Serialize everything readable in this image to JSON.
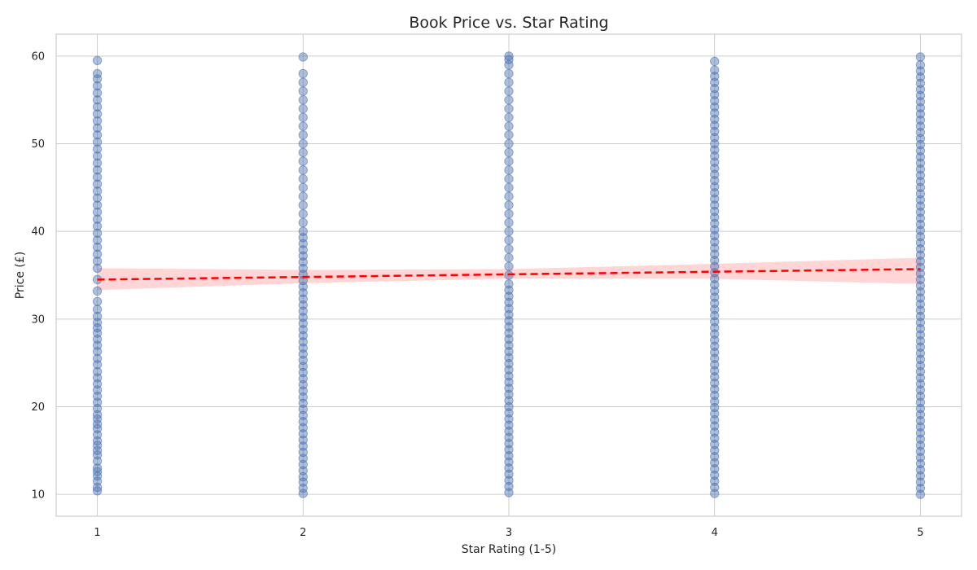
{
  "chart_data": {
    "type": "scatter",
    "title": "Book Price vs. Star Rating",
    "xlabel": "Star Rating (1-5)",
    "ylabel": "Price (£)",
    "xlim": [
      0.8,
      5.2
    ],
    "ylim": [
      7.5,
      62.5
    ],
    "x_ticks": [
      1,
      2,
      3,
      4,
      5
    ],
    "y_ticks": [
      10,
      20,
      30,
      40,
      50,
      60
    ],
    "grid": true,
    "point_color": "#4C72B0",
    "trend_color": "#FF0000",
    "ci_color": "#FFB3B3",
    "series": [
      {
        "x": 1,
        "values": [
          10.4,
          10.8,
          11.5,
          12.1,
          12.6,
          13.0,
          13.8,
          14.5,
          15.0,
          15.6,
          16.1,
          16.8,
          17.5,
          18.0,
          18.6,
          19.1,
          19.8,
          20.5,
          21.2,
          21.9,
          22.6,
          23.3,
          24.0,
          24.8,
          25.5,
          26.3,
          27.0,
          27.7,
          28.4,
          29.0,
          29.6,
          30.3,
          31.1,
          32.0,
          33.2,
          34.5,
          35.8,
          36.6,
          37.4,
          38.2,
          39.0,
          39.8,
          40.6,
          41.4,
          42.2,
          43.0,
          43.8,
          44.6,
          45.4,
          46.2,
          47.0,
          47.8,
          48.6,
          49.4,
          50.2,
          51.0,
          51.8,
          52.6,
          53.4,
          54.2,
          55.0,
          55.8,
          56.6,
          57.4,
          58.0,
          59.5
        ]
      },
      {
        "x": 2,
        "values": [
          10.1,
          10.7,
          11.4,
          12.0,
          12.7,
          13.4,
          14.1,
          14.8,
          15.5,
          16.2,
          16.9,
          17.6,
          18.3,
          19.0,
          19.7,
          20.4,
          21.1,
          21.8,
          22.5,
          23.2,
          23.9,
          24.6,
          25.3,
          26.0,
          26.7,
          27.4,
          28.1,
          28.8,
          29.5,
          30.2,
          30.9,
          31.6,
          32.3,
          33.0,
          33.7,
          34.4,
          35.1,
          35.8,
          36.5,
          37.2,
          37.9,
          38.6,
          39.3,
          40.0,
          41.0,
          42.0,
          43.0,
          44.0,
          45.0,
          46.0,
          47.0,
          48.0,
          49.0,
          50.0,
          51.0,
          52.0,
          53.0,
          54.0,
          55.0,
          56.0,
          57.0,
          58.0,
          59.9
        ]
      },
      {
        "x": 3,
        "values": [
          10.2,
          10.9,
          11.6,
          12.3,
          13.0,
          13.7,
          14.4,
          15.1,
          15.8,
          16.5,
          17.2,
          17.9,
          18.6,
          19.3,
          20.0,
          20.7,
          21.4,
          22.1,
          22.8,
          23.5,
          24.2,
          24.9,
          25.6,
          26.3,
          27.0,
          27.7,
          28.4,
          29.1,
          29.8,
          30.5,
          31.2,
          31.9,
          32.6,
          33.3,
          34.0,
          35.0,
          36.0,
          37.0,
          38.0,
          39.0,
          40.0,
          41.0,
          42.0,
          43.0,
          44.0,
          45.0,
          46.0,
          47.0,
          48.0,
          49.0,
          50.0,
          51.0,
          52.0,
          53.0,
          54.0,
          55.0,
          56.0,
          57.0,
          58.0,
          59.0,
          59.6,
          60.0
        ]
      },
      {
        "x": 4,
        "values": [
          10.1,
          10.8,
          11.5,
          12.2,
          12.9,
          13.6,
          14.3,
          15.0,
          15.7,
          16.4,
          17.1,
          17.8,
          18.5,
          19.2,
          19.9,
          20.6,
          21.3,
          22.0,
          22.7,
          23.4,
          24.1,
          24.8,
          25.5,
          26.2,
          26.9,
          27.6,
          28.3,
          29.0,
          29.7,
          30.4,
          31.1,
          31.8,
          32.5,
          33.2,
          33.9,
          34.6,
          35.3,
          36.0,
          36.7,
          37.4,
          38.1,
          38.8,
          39.5,
          40.2,
          40.9,
          41.6,
          42.3,
          43.0,
          43.7,
          44.4,
          45.1,
          45.8,
          46.5,
          47.2,
          47.9,
          48.6,
          49.3,
          50.0,
          50.7,
          51.4,
          52.1,
          52.8,
          53.5,
          54.2,
          54.9,
          55.6,
          56.3,
          57.0,
          57.7,
          58.4,
          59.4
        ]
      },
      {
        "x": 5,
        "values": [
          10.0,
          10.7,
          11.4,
          12.1,
          12.8,
          13.5,
          14.2,
          14.9,
          15.6,
          16.3,
          17.0,
          17.7,
          18.4,
          19.1,
          19.8,
          20.5,
          21.2,
          21.9,
          22.6,
          23.3,
          24.0,
          24.7,
          25.4,
          26.1,
          26.8,
          27.5,
          28.2,
          28.9,
          29.6,
          30.3,
          31.0,
          31.7,
          32.4,
          33.1,
          33.8,
          34.5,
          35.2,
          35.9,
          36.6,
          37.3,
          38.0,
          38.7,
          39.4,
          40.1,
          40.8,
          41.5,
          42.2,
          42.9,
          43.6,
          44.3,
          45.0,
          45.7,
          46.4,
          47.1,
          47.8,
          48.5,
          49.2,
          49.9,
          50.6,
          51.3,
          52.0,
          52.7,
          53.4,
          54.1,
          54.8,
          55.5,
          56.2,
          56.9,
          57.6,
          58.3,
          59.0,
          59.9
        ]
      }
    ],
    "trend": {
      "x": [
        1,
        5
      ],
      "y": [
        34.5,
        35.7
      ]
    },
    "confidence_band": {
      "x": [
        1,
        2,
        3,
        4,
        5
      ],
      "lower": [
        33.3,
        34.1,
        34.6,
        34.6,
        34.0
      ],
      "upper": [
        35.8,
        35.6,
        35.7,
        36.3,
        37.0
      ]
    }
  }
}
